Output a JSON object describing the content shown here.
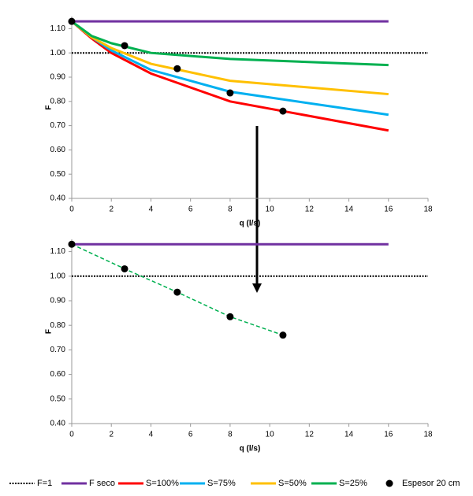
{
  "chart_data": [
    {
      "type": "line",
      "xlabel": "q (l/s)",
      "ylabel": "F",
      "xlim": [
        0,
        18
      ],
      "ylim": [
        0.4,
        1.15
      ],
      "xticks": [
        0,
        2,
        4,
        6,
        8,
        10,
        12,
        14,
        16,
        18
      ],
      "yticks": [
        {
          "value": 0.4,
          "label": "0.40"
        },
        {
          "value": 0.5,
          "label": "0.50"
        },
        {
          "value": 0.6,
          "label": "0.60"
        },
        {
          "value": 0.7,
          "label": "0.70"
        },
        {
          "value": 0.8,
          "label": "0.80"
        },
        {
          "value": 0.9,
          "label": "0.90"
        },
        {
          "value": 1.0,
          "label": "1.00"
        },
        {
          "value": 1.1,
          "label": "1.10"
        }
      ],
      "series": [
        {
          "name": "F=1",
          "color": "#000000",
          "line_style": "dotted",
          "x": [
            0,
            18
          ],
          "values": [
            1.0,
            1.0
          ]
        },
        {
          "name": "F seco",
          "color": "#7030a0",
          "line_style": "solid",
          "x": [
            0,
            16
          ],
          "values": [
            1.13,
            1.13
          ]
        },
        {
          "name": "S=100%",
          "color": "#ff0000",
          "line_style": "solid",
          "x": [
            0,
            1,
            2,
            4,
            8,
            16
          ],
          "values": [
            1.13,
            1.06,
            1.0,
            0.915,
            0.8,
            0.68
          ]
        },
        {
          "name": "S=75%",
          "color": "#00b0f0",
          "line_style": "solid",
          "x": [
            0,
            1,
            2,
            4,
            8,
            16
          ],
          "values": [
            1.13,
            1.065,
            1.01,
            0.93,
            0.84,
            0.745
          ]
        },
        {
          "name": "S=50%",
          "color": "#ffc000",
          "line_style": "solid",
          "x": [
            0,
            1,
            2,
            4,
            8,
            16
          ],
          "values": [
            1.13,
            1.065,
            1.02,
            0.955,
            0.885,
            0.83
          ]
        },
        {
          "name": "S=25%",
          "color": "#00b050",
          "line_style": "solid",
          "x": [
            0,
            1,
            2,
            4,
            8,
            16
          ],
          "values": [
            1.13,
            1.07,
            1.04,
            1.0,
            0.975,
            0.95
          ]
        },
        {
          "name": "Espesor 20 cm",
          "color": "#000000",
          "line_style": "none",
          "marker": "circle",
          "x": [
            0,
            2.67,
            5.33,
            8,
            10.67
          ],
          "values": [
            1.13,
            1.03,
            0.935,
            0.835,
            0.76
          ]
        }
      ]
    },
    {
      "type": "line",
      "xlabel": "q (l/s)",
      "ylabel": "F",
      "xlim": [
        0,
        18
      ],
      "ylim": [
        0.4,
        1.15
      ],
      "xticks": [
        0,
        2,
        4,
        6,
        8,
        10,
        12,
        14,
        16,
        18
      ],
      "yticks": [
        {
          "value": 0.4,
          "label": "0.40"
        },
        {
          "value": 0.5,
          "label": "0.50"
        },
        {
          "value": 0.6,
          "label": "0.60"
        },
        {
          "value": 0.7,
          "label": "0.70"
        },
        {
          "value": 0.8,
          "label": "0.80"
        },
        {
          "value": 0.9,
          "label": "0.90"
        },
        {
          "value": 1.0,
          "label": "1.00"
        },
        {
          "value": 1.1,
          "label": "1.10"
        }
      ],
      "series": [
        {
          "color": "#000000",
          "line_style": "dotted",
          "x": [
            0,
            18
          ],
          "values": [
            1.0,
            1.0
          ]
        },
        {
          "color": "#7030a0",
          "line_style": "solid",
          "x": [
            0,
            16
          ],
          "values": [
            1.13,
            1.13
          ]
        },
        {
          "color": "#00b050",
          "line_style": "dashed",
          "x": [
            0,
            2.67,
            5.33,
            8,
            10.67
          ],
          "values": [
            1.13,
            1.03,
            0.935,
            0.835,
            0.76
          ]
        },
        {
          "color": "#000000",
          "line_style": "none",
          "marker": "circle",
          "x": [
            0,
            2.67,
            5.33,
            8,
            10.67
          ],
          "values": [
            1.13,
            1.03,
            0.935,
            0.835,
            0.76
          ]
        }
      ]
    }
  ]
}
